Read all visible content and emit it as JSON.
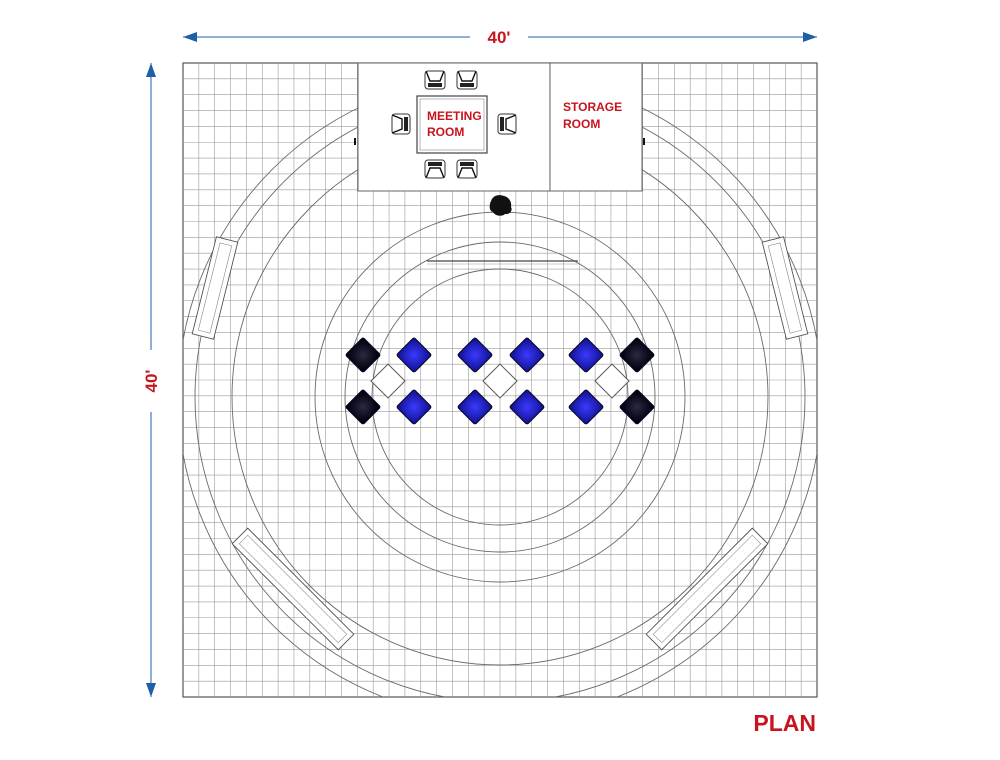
{
  "drawing": {
    "title": "PLAN",
    "width_label": "40'",
    "height_label": "40'"
  },
  "rooms": {
    "meeting_line1": "MEETING",
    "meeting_line2": "ROOM",
    "storage_line1": "STORAGE",
    "storage_line2": "ROOM"
  },
  "colors": {
    "accent_red": "#c8141e",
    "dimension_blue": "#1f5fa8",
    "seat_blue": "#1a1acf",
    "seat_black": "#0a0a1a",
    "grid": "#8c8c8c"
  },
  "seating": {
    "rows": [
      [
        "black",
        "blue",
        "blue",
        "blue",
        "blue",
        "black"
      ],
      [
        "black",
        "blue",
        "blue",
        "blue",
        "blue",
        "black"
      ]
    ],
    "tables": 3
  },
  "meeting_chairs": 6,
  "display_counters": 4
}
